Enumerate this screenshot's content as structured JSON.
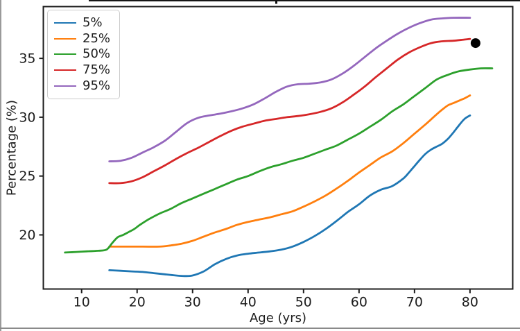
{
  "chart_data": {
    "type": "line",
    "title": "",
    "xlabel": "Age (yrs)",
    "ylabel": "Percentage (%)",
    "xlim": [
      3.1,
      87.7
    ],
    "ylim": [
      15.4,
      39.4
    ],
    "x_ticks": [
      10,
      20,
      30,
      40,
      50,
      60,
      70,
      80
    ],
    "y_ticks": [
      20,
      25,
      30,
      35
    ],
    "grid": false,
    "legend_position": "upper left",
    "legend_labels": [
      "5%",
      "25%",
      "50%",
      "75%",
      "95%"
    ],
    "series": [
      {
        "name": "5%",
        "color": "#1f77b4",
        "points": [
          [
            15,
            17.0
          ],
          [
            17,
            16.95
          ],
          [
            19,
            16.9
          ],
          [
            21,
            16.85
          ],
          [
            23,
            16.75
          ],
          [
            25,
            16.65
          ],
          [
            27,
            16.55
          ],
          [
            28.5,
            16.5
          ],
          [
            30,
            16.55
          ],
          [
            32,
            16.9
          ],
          [
            34,
            17.5
          ],
          [
            36,
            17.95
          ],
          [
            38,
            18.25
          ],
          [
            40,
            18.4
          ],
          [
            42,
            18.5
          ],
          [
            44,
            18.6
          ],
          [
            46,
            18.75
          ],
          [
            48,
            19.0
          ],
          [
            50,
            19.4
          ],
          [
            52,
            19.9
          ],
          [
            54,
            20.5
          ],
          [
            56,
            21.2
          ],
          [
            58,
            21.95
          ],
          [
            60,
            22.6
          ],
          [
            62,
            23.35
          ],
          [
            64,
            23.85
          ],
          [
            66,
            24.15
          ],
          [
            68,
            24.8
          ],
          [
            69,
            25.3
          ],
          [
            70,
            25.85
          ],
          [
            71,
            26.4
          ],
          [
            72,
            26.9
          ],
          [
            73,
            27.25
          ],
          [
            74,
            27.5
          ],
          [
            75,
            27.75
          ],
          [
            76,
            28.15
          ],
          [
            77,
            28.7
          ],
          [
            78,
            29.3
          ],
          [
            79,
            29.85
          ],
          [
            80,
            30.15
          ]
        ]
      },
      {
        "name": "25%",
        "color": "#ff7f0e",
        "points": [
          [
            15,
            19.0
          ],
          [
            18,
            19.0
          ],
          [
            21,
            19.0
          ],
          [
            24,
            19.0
          ],
          [
            26,
            19.1
          ],
          [
            28,
            19.25
          ],
          [
            30,
            19.5
          ],
          [
            32,
            19.85
          ],
          [
            34,
            20.2
          ],
          [
            36,
            20.5
          ],
          [
            38,
            20.85
          ],
          [
            40,
            21.1
          ],
          [
            42,
            21.3
          ],
          [
            44,
            21.5
          ],
          [
            46,
            21.75
          ],
          [
            48,
            22.0
          ],
          [
            50,
            22.4
          ],
          [
            52,
            22.85
          ],
          [
            54,
            23.35
          ],
          [
            56,
            23.95
          ],
          [
            58,
            24.6
          ],
          [
            60,
            25.3
          ],
          [
            62,
            25.95
          ],
          [
            64,
            26.6
          ],
          [
            66,
            27.1
          ],
          [
            68,
            27.8
          ],
          [
            70,
            28.6
          ],
          [
            72,
            29.4
          ],
          [
            74,
            30.25
          ],
          [
            75,
            30.65
          ],
          [
            76,
            31.0
          ],
          [
            77,
            31.2
          ],
          [
            78,
            31.4
          ],
          [
            79,
            31.6
          ],
          [
            80,
            31.85
          ]
        ]
      },
      {
        "name": "50%",
        "color": "#2ca02c",
        "points": [
          [
            7,
            18.5
          ],
          [
            9,
            18.55
          ],
          [
            11,
            18.6
          ],
          [
            13,
            18.65
          ],
          [
            14.5,
            18.75
          ],
          [
            15.5,
            19.3
          ],
          [
            16.5,
            19.8
          ],
          [
            17.5,
            20.0
          ],
          [
            18.5,
            20.25
          ],
          [
            19.5,
            20.5
          ],
          [
            20.5,
            20.85
          ],
          [
            22,
            21.3
          ],
          [
            24,
            21.8
          ],
          [
            26,
            22.2
          ],
          [
            28,
            22.7
          ],
          [
            30,
            23.1
          ],
          [
            32,
            23.5
          ],
          [
            34,
            23.9
          ],
          [
            36,
            24.3
          ],
          [
            38,
            24.7
          ],
          [
            40,
            25.0
          ],
          [
            42,
            25.4
          ],
          [
            44,
            25.75
          ],
          [
            46,
            26.0
          ],
          [
            48,
            26.3
          ],
          [
            50,
            26.55
          ],
          [
            52,
            26.9
          ],
          [
            54,
            27.25
          ],
          [
            56,
            27.6
          ],
          [
            58,
            28.1
          ],
          [
            60,
            28.6
          ],
          [
            62,
            29.2
          ],
          [
            64,
            29.8
          ],
          [
            66,
            30.5
          ],
          [
            68,
            31.1
          ],
          [
            70,
            31.8
          ],
          [
            72,
            32.5
          ],
          [
            74,
            33.2
          ],
          [
            76,
            33.6
          ],
          [
            78,
            33.9
          ],
          [
            80,
            34.05
          ],
          [
            82,
            34.15
          ],
          [
            84,
            34.15
          ]
        ]
      },
      {
        "name": "75%",
        "color": "#d62728",
        "points": [
          [
            15,
            24.4
          ],
          [
            17,
            24.4
          ],
          [
            19,
            24.55
          ],
          [
            21,
            24.9
          ],
          [
            23,
            25.4
          ],
          [
            25,
            25.9
          ],
          [
            27,
            26.45
          ],
          [
            29,
            26.95
          ],
          [
            31,
            27.4
          ],
          [
            33,
            27.9
          ],
          [
            35,
            28.4
          ],
          [
            37,
            28.85
          ],
          [
            39,
            29.2
          ],
          [
            41,
            29.45
          ],
          [
            43,
            29.7
          ],
          [
            45,
            29.85
          ],
          [
            47,
            30.0
          ],
          [
            49,
            30.1
          ],
          [
            51,
            30.25
          ],
          [
            53,
            30.45
          ],
          [
            55,
            30.75
          ],
          [
            57,
            31.25
          ],
          [
            59,
            31.9
          ],
          [
            61,
            32.6
          ],
          [
            63,
            33.4
          ],
          [
            65,
            34.15
          ],
          [
            67,
            34.9
          ],
          [
            69,
            35.5
          ],
          [
            71,
            35.95
          ],
          [
            73,
            36.3
          ],
          [
            75,
            36.45
          ],
          [
            77,
            36.5
          ],
          [
            79,
            36.6
          ],
          [
            80,
            36.65
          ]
        ]
      },
      {
        "name": "95%",
        "color": "#9467bd",
        "points": [
          [
            15,
            26.25
          ],
          [
            17,
            26.3
          ],
          [
            19,
            26.55
          ],
          [
            21,
            27.0
          ],
          [
            23,
            27.45
          ],
          [
            25,
            28.0
          ],
          [
            27,
            28.75
          ],
          [
            29,
            29.5
          ],
          [
            31,
            29.95
          ],
          [
            33,
            30.15
          ],
          [
            35,
            30.3
          ],
          [
            37,
            30.5
          ],
          [
            39,
            30.75
          ],
          [
            41,
            31.1
          ],
          [
            43,
            31.6
          ],
          [
            45,
            32.15
          ],
          [
            47,
            32.6
          ],
          [
            49,
            32.8
          ],
          [
            51,
            32.85
          ],
          [
            53,
            32.95
          ],
          [
            55,
            33.2
          ],
          [
            57,
            33.7
          ],
          [
            59,
            34.35
          ],
          [
            61,
            35.1
          ],
          [
            63,
            35.85
          ],
          [
            65,
            36.5
          ],
          [
            67,
            37.1
          ],
          [
            69,
            37.6
          ],
          [
            71,
            38.0
          ],
          [
            73,
            38.3
          ],
          [
            75,
            38.4
          ],
          [
            77,
            38.45
          ],
          [
            80,
            38.45
          ]
        ]
      }
    ],
    "annotations": [
      {
        "type": "scatter-point",
        "x": 81,
        "y": 36.3,
        "color": "#000000"
      }
    ]
  }
}
